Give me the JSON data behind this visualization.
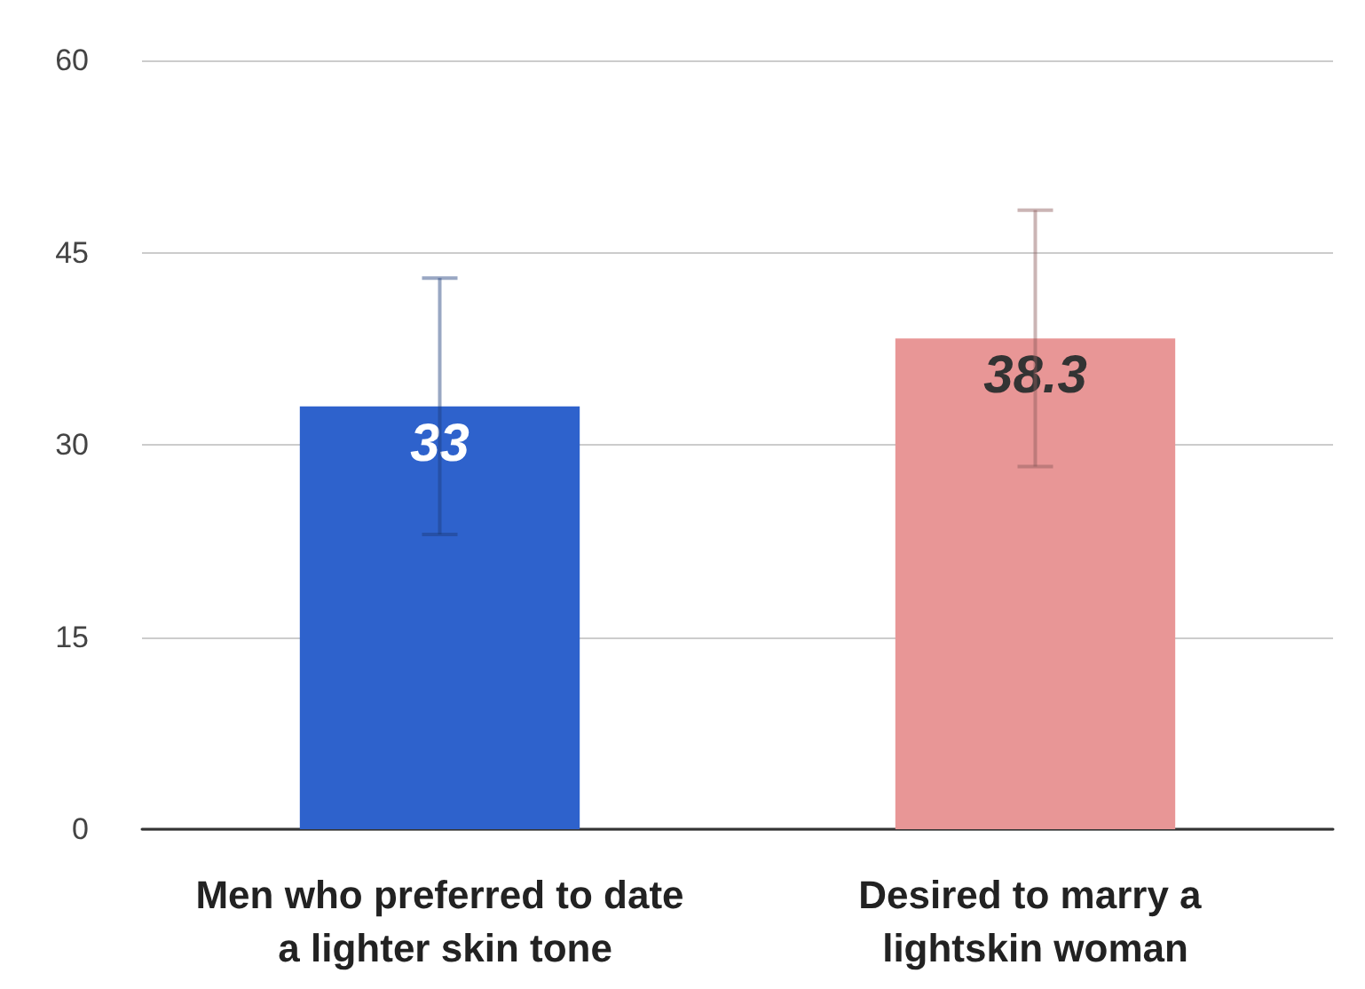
{
  "chart_data": {
    "type": "bar",
    "categories": [
      "Men who preferred to date a lighter skin tone",
      "Desired to marry a lightskin woman"
    ],
    "values": [
      33,
      38.3
    ],
    "colors": [
      "#2e62cc",
      "#e89696"
    ],
    "errors": [
      10,
      10
    ],
    "data_labels": true,
    "ylim": [
      0,
      60
    ],
    "yticks": [
      0,
      15,
      30,
      45,
      60
    ],
    "grid": "y"
  }
}
